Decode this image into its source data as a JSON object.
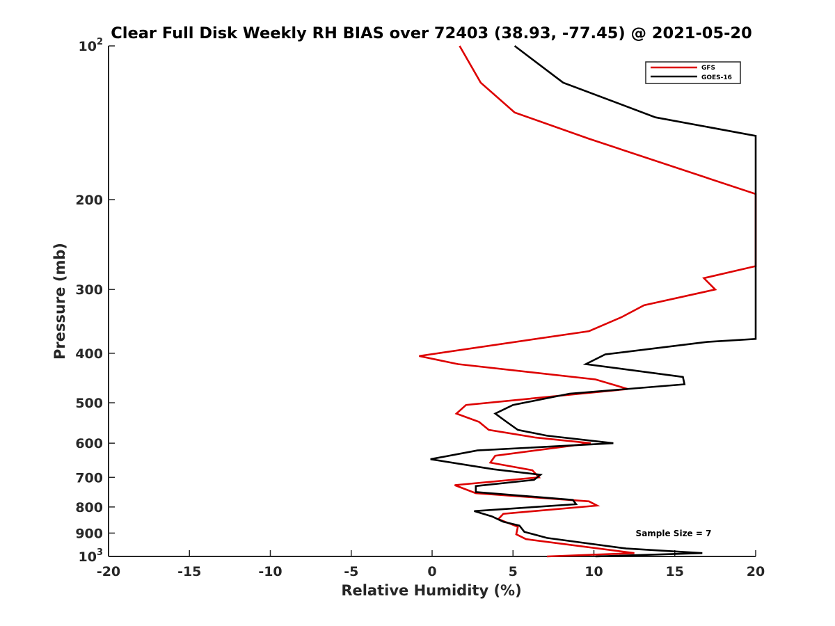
{
  "chart_data": {
    "type": "line",
    "title": "Clear Full Disk Weekly RH BIAS over 72403 (38.93, -77.45) @ 2021-05-20",
    "xlabel": "Relative Humidity (%)",
    "ylabel": "Pressure (mb)",
    "xlim": [
      -20,
      20
    ],
    "ylim": [
      100,
      1000
    ],
    "yscale": "log",
    "y_reversed": true,
    "grid": false,
    "legend_position": "top-right",
    "x_ticks": [
      "-20",
      "-15",
      "-10",
      "-5",
      "0",
      "5",
      "10",
      "15",
      "20"
    ],
    "y_ticks": [
      {
        "base": "10",
        "exp": "2"
      },
      {
        "base": "200",
        "exp": ""
      },
      {
        "base": "300",
        "exp": ""
      },
      {
        "base": "400",
        "exp": ""
      },
      {
        "base": "500",
        "exp": ""
      },
      {
        "base": "600",
        "exp": ""
      },
      {
        "base": "700",
        "exp": ""
      },
      {
        "base": "800",
        "exp": ""
      },
      {
        "base": "900",
        "exp": ""
      },
      {
        "base": "10",
        "exp": "3"
      }
    ],
    "annotation": "Sample Size = 7",
    "series": [
      {
        "name": "GFS",
        "color": "#dd0000",
        "points": [
          [
            1.7,
            100
          ],
          [
            3.0,
            118
          ],
          [
            5.1,
            135
          ],
          [
            9.7,
            152
          ],
          [
            20,
            195
          ],
          [
            20,
            200
          ],
          [
            20,
            270
          ],
          [
            16.8,
            285
          ],
          [
            17.5,
            300
          ],
          [
            13.1,
            322
          ],
          [
            11.7,
            340
          ],
          [
            9.7,
            362
          ],
          [
            -0.8,
            405
          ],
          [
            1.6,
            420
          ],
          [
            10.1,
            450
          ],
          [
            12.1,
            470
          ],
          [
            2.1,
            505
          ],
          [
            1.5,
            525
          ],
          [
            2.9,
            545
          ],
          [
            3.5,
            565
          ],
          [
            6.4,
            585
          ],
          [
            9.8,
            600
          ],
          [
            3.9,
            635
          ],
          [
            3.6,
            655
          ],
          [
            6.2,
            678
          ],
          [
            6.6,
            700
          ],
          [
            1.4,
            725
          ],
          [
            2.7,
            752
          ],
          [
            9.7,
            780
          ],
          [
            10.2,
            795
          ],
          [
            4.4,
            825
          ],
          [
            4.1,
            845
          ],
          [
            5.3,
            875
          ],
          [
            5.2,
            905
          ],
          [
            5.8,
            925
          ],
          [
            12.5,
            985
          ],
          [
            7.1,
            1000
          ]
        ]
      },
      {
        "name": "GOES-16",
        "color": "#000000",
        "points": [
          [
            5.1,
            100
          ],
          [
            8.1,
            118
          ],
          [
            13.8,
            138
          ],
          [
            20,
            150
          ],
          [
            20,
            375
          ],
          [
            17.0,
            380
          ],
          [
            10.7,
            402
          ],
          [
            9.5,
            420
          ],
          [
            15.5,
            445
          ],
          [
            15.6,
            460
          ],
          [
            8.5,
            480
          ],
          [
            5.0,
            505
          ],
          [
            3.9,
            525
          ],
          [
            4.6,
            545
          ],
          [
            5.3,
            565
          ],
          [
            7.1,
            580
          ],
          [
            11.2,
            600
          ],
          [
            2.8,
            620
          ],
          [
            -0.1,
            645
          ],
          [
            3.8,
            675
          ],
          [
            6.7,
            692
          ],
          [
            6.3,
            708
          ],
          [
            2.7,
            728
          ],
          [
            2.7,
            748
          ],
          [
            8.7,
            775
          ],
          [
            8.9,
            790
          ],
          [
            2.6,
            815
          ],
          [
            3.7,
            835
          ],
          [
            4.4,
            855
          ],
          [
            5.4,
            870
          ],
          [
            5.7,
            895
          ],
          [
            7.1,
            920
          ],
          [
            12.0,
            965
          ],
          [
            16.7,
            985
          ],
          [
            10.1,
            1000
          ]
        ]
      }
    ]
  }
}
